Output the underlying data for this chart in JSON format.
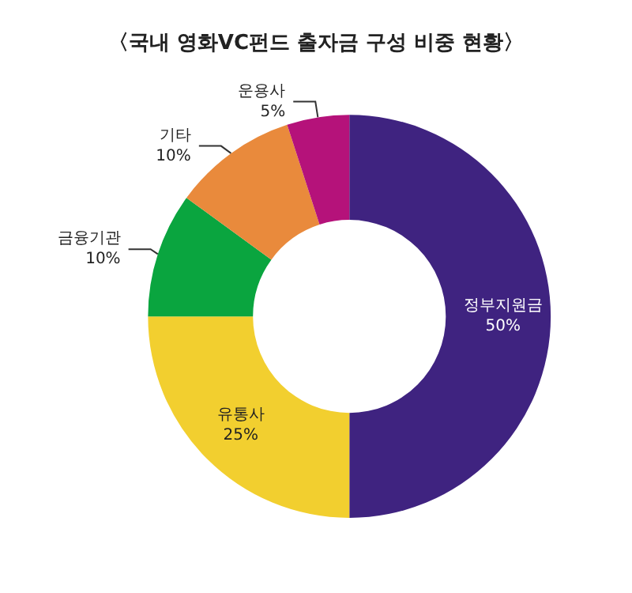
{
  "chart_data": {
    "type": "donut",
    "title": "〈국내 영화VC펀드 출자금 구성 비중 현황〉",
    "categories": [
      "정부지원금",
      "유통사",
      "금융기관",
      "기타",
      "운용사"
    ],
    "values": [
      50,
      25,
      10,
      10,
      5
    ],
    "value_labels": [
      "50%",
      "25%",
      "10%",
      "10%",
      "5%"
    ],
    "colors": [
      "#3f2380",
      "#f2cf2f",
      "#0aa53f",
      "#e98a3c",
      "#b5127a"
    ],
    "legend": false
  }
}
